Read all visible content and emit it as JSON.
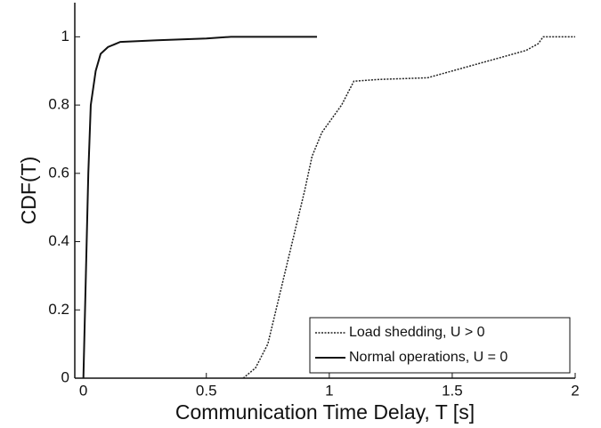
{
  "chart_data": {
    "type": "line",
    "xlabel": "Communication Time Delay, T [s]",
    "ylabel": "CDF(T)",
    "xlim": [
      -0.035,
      2
    ],
    "ylim": [
      0,
      1.1
    ],
    "xticks": [
      0,
      0.5,
      1,
      1.5,
      2
    ],
    "yticks": [
      0,
      0.2,
      0.4,
      0.6,
      0.8,
      1
    ],
    "legend": "lower right",
    "series": [
      {
        "name": "Load shedding, U > 0",
        "color": "#222222",
        "linestyle": "dotted",
        "x": [
          0.65,
          0.7,
          0.75,
          0.8,
          0.85,
          0.9,
          0.93,
          0.97,
          1.0,
          1.05,
          1.1,
          1.2,
          1.4,
          1.5,
          1.6,
          1.7,
          1.8,
          1.85,
          1.87,
          2.0
        ],
        "values": [
          0,
          0.03,
          0.1,
          0.25,
          0.4,
          0.55,
          0.65,
          0.72,
          0.75,
          0.8,
          0.87,
          0.875,
          0.88,
          0.9,
          0.92,
          0.94,
          0.96,
          0.98,
          1.0,
          1.0
        ]
      },
      {
        "name": "Normal operations, U = 0",
        "color": "#111111",
        "linestyle": "solid",
        "x": [
          0,
          0.01,
          0.02,
          0.03,
          0.05,
          0.07,
          0.1,
          0.15,
          0.3,
          0.5,
          0.6,
          0.95
        ],
        "values": [
          0,
          0.3,
          0.6,
          0.8,
          0.9,
          0.95,
          0.97,
          0.985,
          0.99,
          0.995,
          1,
          1
        ]
      }
    ]
  }
}
